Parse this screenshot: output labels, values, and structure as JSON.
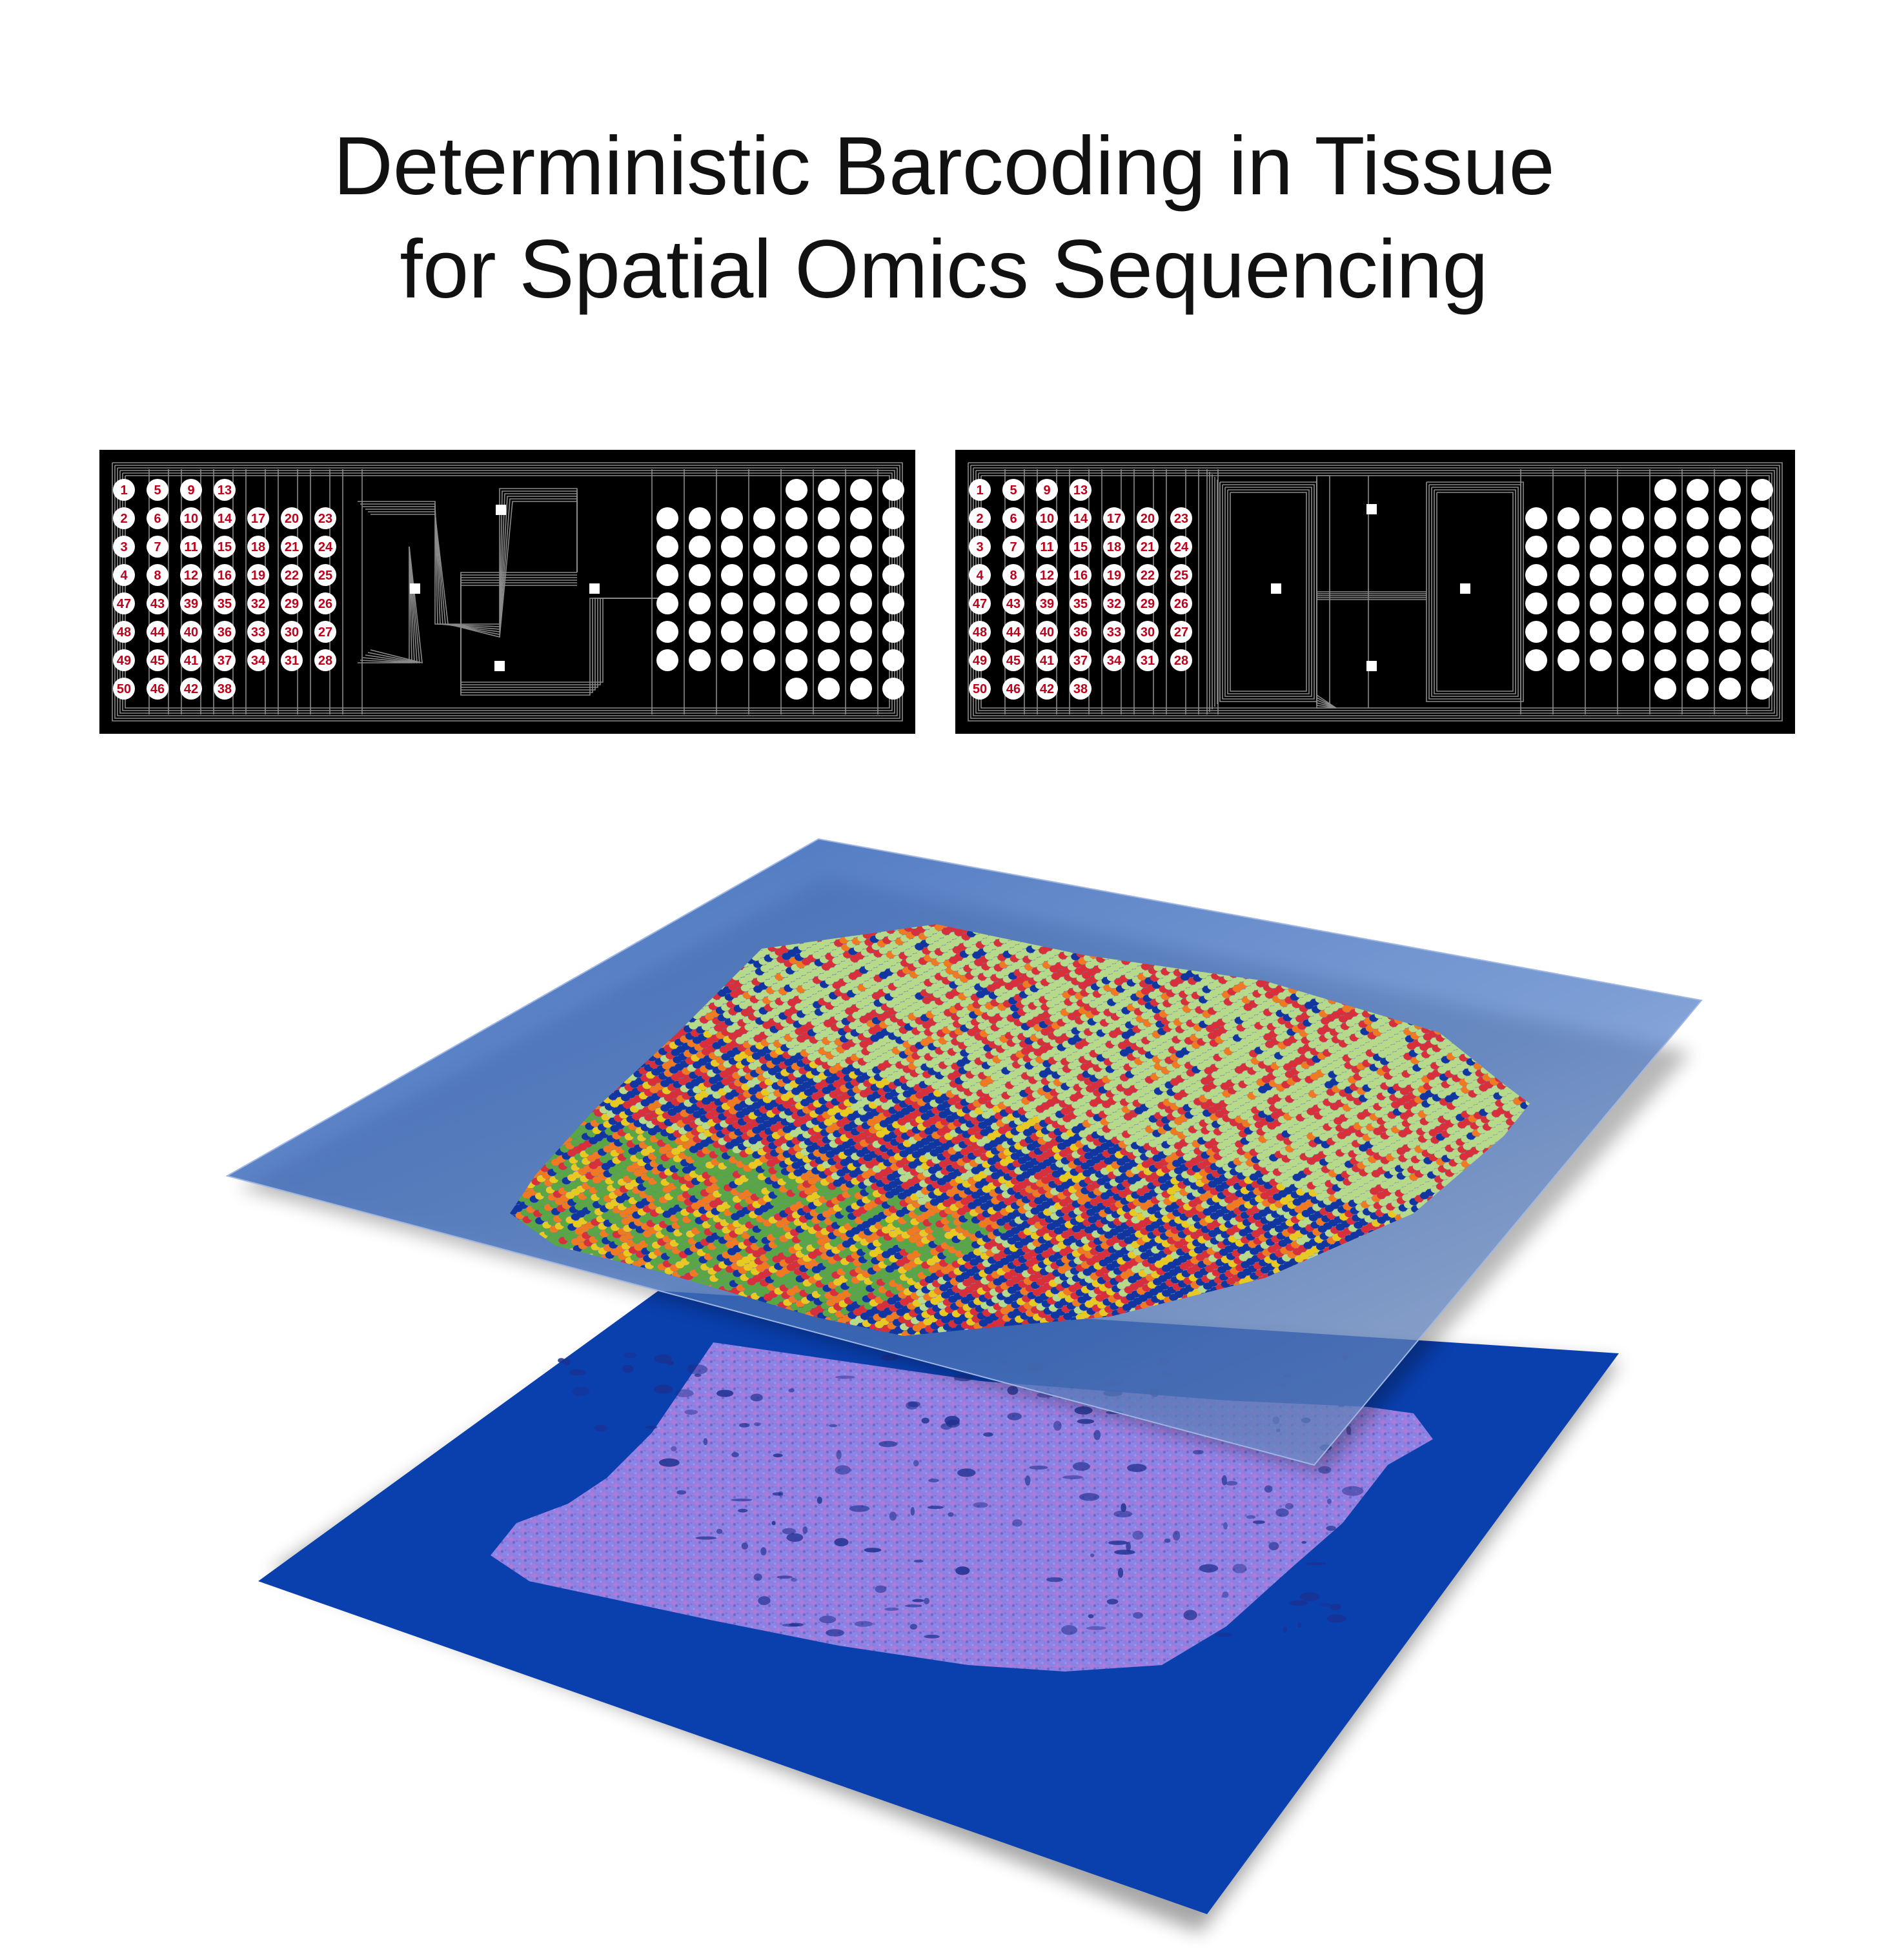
{
  "title": {
    "line1": "Deterministic Barcoding in Tissue",
    "line2": "for Spatial Omics Sequencing"
  },
  "chips": {
    "inlet_numbers": [
      [
        "1",
        "5",
        "9",
        "13"
      ],
      [
        "2",
        "6",
        "10",
        "14",
        "17",
        "20",
        "23"
      ],
      [
        "3",
        "7",
        "11",
        "15",
        "18",
        "21",
        "24"
      ],
      [
        "4",
        "8",
        "12",
        "16",
        "19",
        "22",
        "25"
      ],
      [
        "47",
        "43",
        "39",
        "35",
        "32",
        "29",
        "26"
      ],
      [
        "48",
        "44",
        "40",
        "36",
        "33",
        "30",
        "27"
      ],
      [
        "49",
        "45",
        "41",
        "37",
        "34",
        "31",
        "28"
      ],
      [
        "50",
        "46",
        "42",
        "38"
      ]
    ],
    "colors": {
      "background": "#000000",
      "channel": "#8a8a8a",
      "port": "#ffffff",
      "label": "#c0001a"
    }
  },
  "tissue_layers": {
    "colors": {
      "top_slide": "#4a78c4",
      "bottom_slide": "#0a3fae",
      "tissue_stain": "#8a82e6"
    },
    "cluster_colors": [
      "#1236a0",
      "#d8303a",
      "#b7d98a",
      "#e8c822",
      "#ef7a22",
      "#5aa645"
    ]
  }
}
